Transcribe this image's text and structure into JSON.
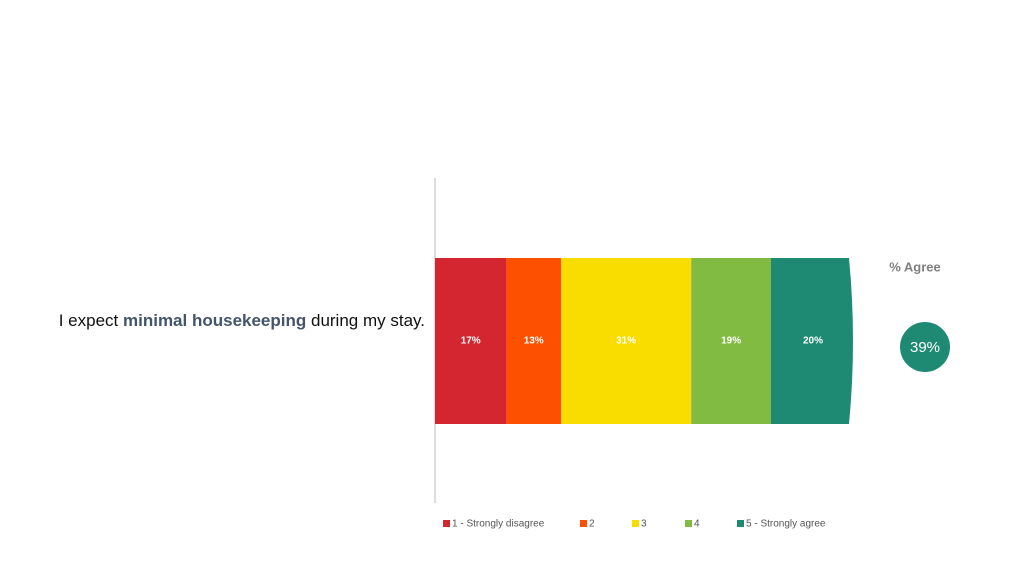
{
  "chart_data": {
    "type": "stacked_bar",
    "orientation": "horizontal",
    "category_label": {
      "before": "I expect ",
      "highlight": "minimal housekeeping",
      "after": " during my stay."
    },
    "xlim": [
      0,
      100
    ],
    "series": [
      {
        "name": "1 - Strongly disagree",
        "color": "#d32630",
        "values": [
          17
        ],
        "value_labels": [
          "17%"
        ]
      },
      {
        "name": "2",
        "color": "#fd5000",
        "values": [
          13
        ],
        "value_labels": [
          "13%"
        ]
      },
      {
        "name": "3",
        "color": "#f9dc00",
        "values": [
          31
        ],
        "value_labels": [
          "31%"
        ]
      },
      {
        "name": "4",
        "color": "#82bb42",
        "values": [
          19
        ],
        "value_labels": [
          "19%"
        ]
      },
      {
        "name": "5 - Strongly agree",
        "color": "#1e8a73",
        "values": [
          20
        ],
        "value_labels": [
          "20%"
        ]
      }
    ],
    "agree_label": "% Agree",
    "agree_value": 39,
    "agree_value_label": "39%",
    "agree_color": "#1e8a73"
  }
}
